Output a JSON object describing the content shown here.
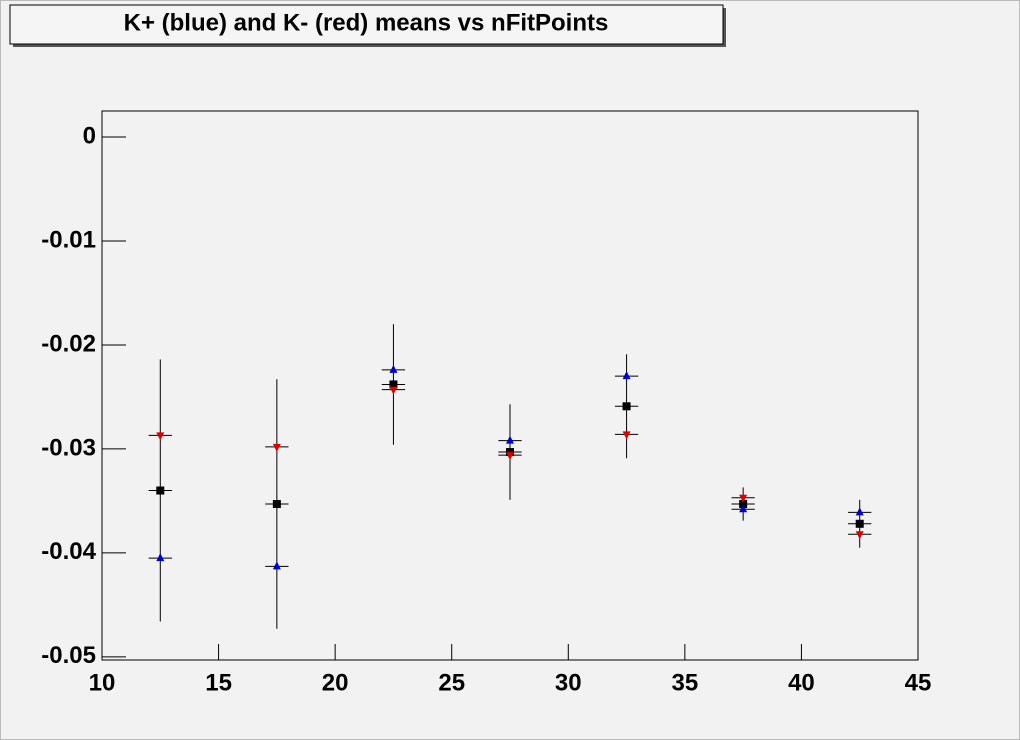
{
  "chart_data": {
    "type": "scatter",
    "title": "K+ (blue) and K- (red) means vs nFitPoints",
    "x": [
      12.5,
      17.5,
      22.5,
      27.5,
      32.5,
      37.5,
      42.5
    ],
    "xlim": [
      10,
      45
    ],
    "xticks": [
      10,
      15,
      20,
      25,
      30,
      35,
      40,
      45
    ],
    "ylim": [
      -0.0503,
      0.0025
    ],
    "yticks": [
      0,
      -0.01,
      -0.02,
      -0.03,
      -0.04,
      -0.05
    ],
    "series": [
      {
        "color": "#000000",
        "marker": "square",
        "x_error": 0.5,
        "values": [
          -0.034,
          -0.0353,
          -0.0238,
          -0.0303,
          -0.0259,
          -0.0353,
          -0.0372
        ],
        "errors": [
          0.0126,
          0.012,
          0.0058,
          0.0046,
          0.005,
          0.0016,
          0.0023
        ]
      },
      {
        "color": "#0000cc",
        "marker": "triangle-up",
        "x_error": 0.5,
        "values": [
          -0.0405,
          -0.0413,
          -0.0224,
          -0.0292,
          -0.023,
          -0.0358,
          -0.0361
        ]
      },
      {
        "color": "#dd0000",
        "marker": "triangle-down",
        "x_error": 0.5,
        "values": [
          -0.0287,
          -0.0298,
          -0.0243,
          -0.0306,
          -0.0286,
          -0.0347,
          -0.0382
        ]
      }
    ]
  }
}
